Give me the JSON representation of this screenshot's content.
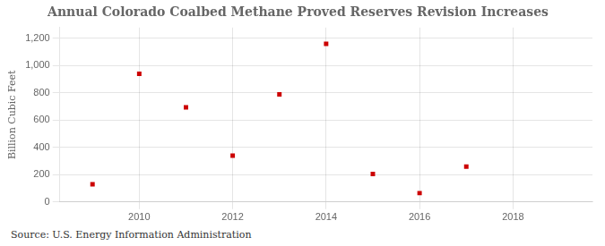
{
  "chart_data": {
    "type": "scatter",
    "title": "Annual Colorado Coalbed Methane Proved Reserves Revision Increases",
    "y_label": "Billion Cubic Feet",
    "annotation": "Source: U.S. Energy Information Administration",
    "x": [
      2009,
      2010,
      2011,
      2012,
      2013,
      2014,
      2015,
      2016,
      2017
    ],
    "values": [
      130,
      940,
      695,
      340,
      790,
      1160,
      205,
      65,
      260
    ],
    "color": "#cc0000",
    "marker": "square",
    "xlim": [
      2008.3,
      2019.7
    ],
    "xticks": [
      2010,
      2012,
      2014,
      2016,
      2018
    ],
    "ylim": [
      0,
      1280
    ],
    "yticks": [
      0,
      200,
      400,
      600,
      800,
      {
        "value": 1000,
        "label": "1,000"
      },
      {
        "value": 1200,
        "label": "1,200"
      }
    ],
    "grid": true
  }
}
